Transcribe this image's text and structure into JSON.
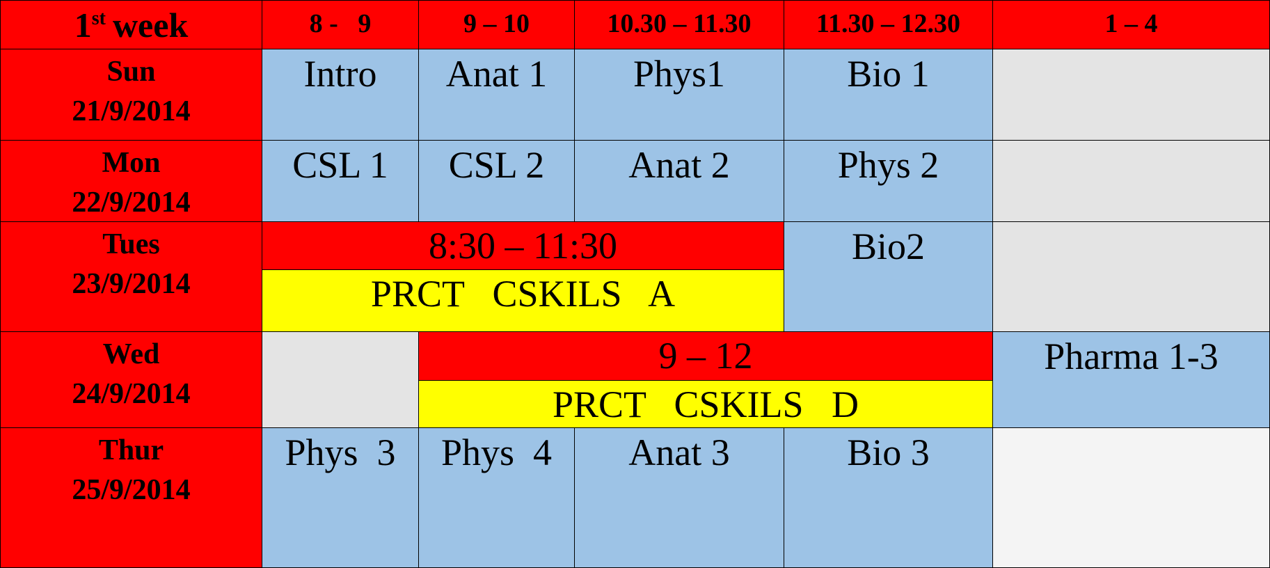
{
  "header": {
    "corner": {
      "ordinal": "1",
      "suffix": "st",
      "label": "week"
    },
    "slots": [
      "8 -   9",
      "9 – 10",
      "10.30 – 11.30",
      "11.30 – 12.30",
      "1 – 4"
    ]
  },
  "days": [
    {
      "day": "Sun",
      "date": "21/9/2014",
      "sessions": [
        "Intro",
        "Anat 1",
        "Phys1",
        "Bio 1"
      ]
    },
    {
      "day": "Mon",
      "date": "22/9/2014",
      "sessions": [
        "CSL 1",
        "CSL 2",
        "Anat 2",
        "Phys 2"
      ]
    },
    {
      "day": "Tues",
      "date": "23/9/2014",
      "block": {
        "time": "8:30 – 11:30",
        "activity": "PRCT   CSKILS   A"
      },
      "sessions": [
        "Bio2"
      ]
    },
    {
      "day": "Wed",
      "date": "24/9/2014",
      "block": {
        "time": "9 – 12",
        "activity": "PRCT   CSKILS   D"
      },
      "sessions": [
        "Pharma 1-3"
      ]
    },
    {
      "day": "Thur",
      "date": "25/9/2014",
      "sessions": [
        "Phys  3",
        "Phys  4",
        "Anat 3",
        "Bio 3"
      ]
    }
  ]
}
